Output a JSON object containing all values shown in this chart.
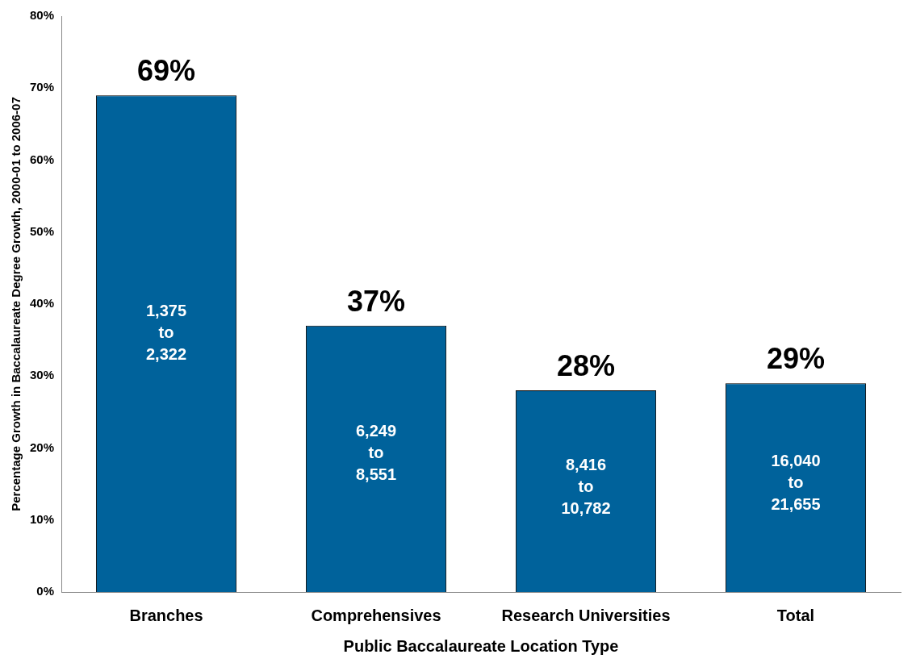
{
  "chart_data": {
    "type": "bar",
    "xlabel": "Public Baccalaureate Location Type",
    "ylabel": "Percentage Growth in Baccalaureate Degree Growth, 2000-01 to 2006-07",
    "categories": [
      "Branches",
      "Comprehensives",
      "Research Universities",
      "Total"
    ],
    "values": [
      69,
      37,
      28,
      29
    ],
    "color": "#00629b",
    "value_labels": [
      "69%",
      "37%",
      "28%",
      "29%"
    ],
    "ylim": [
      0,
      80
    ],
    "yticks": [
      {
        "value": 0,
        "label": "0%"
      },
      {
        "value": 10,
        "label": "10%"
      },
      {
        "value": 20,
        "label": "20%"
      },
      {
        "value": 30,
        "label": "30%"
      },
      {
        "value": 40,
        "label": "40%"
      },
      {
        "value": 50,
        "label": "50%"
      },
      {
        "value": 60,
        "label": "60%"
      },
      {
        "value": 70,
        "label": "70%"
      },
      {
        "value": 80,
        "label": "80%"
      }
    ],
    "grid": false,
    "legend": false,
    "annotations": [
      "1,375\nto\n2,322",
      "6,249\nto\n8,551",
      "8,416\nto\n10,782",
      "16,040\nto\n21,655"
    ]
  }
}
